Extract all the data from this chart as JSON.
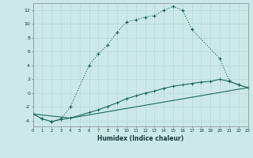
{
  "xlabel": "Humidex (Indice chaleur)",
  "bg_color": "#cce8e8",
  "line_color": "#1a6b5a",
  "xlim": [
    0,
    23
  ],
  "ylim": [
    -4.8,
    13.0
  ],
  "xticks": [
    0,
    1,
    2,
    3,
    4,
    5,
    6,
    7,
    8,
    9,
    10,
    11,
    12,
    13,
    14,
    15,
    16,
    17,
    18,
    19,
    20,
    21,
    22,
    23
  ],
  "yticks": [
    -4,
    -2,
    0,
    2,
    4,
    6,
    8,
    10,
    12
  ],
  "curve1_x": [
    0,
    1,
    2,
    3,
    4,
    6,
    7,
    8,
    9,
    10,
    11,
    12,
    13,
    14,
    15,
    16,
    17,
    20,
    21,
    22,
    23
  ],
  "curve1_y": [
    -3.0,
    -3.7,
    -4.1,
    -3.7,
    -2.0,
    4.0,
    5.7,
    7.0,
    8.8,
    10.3,
    10.6,
    11.0,
    11.2,
    12.0,
    12.5,
    12.0,
    9.2,
    5.0,
    1.8,
    1.2,
    0.8
  ],
  "curve2_x": [
    0,
    1,
    2,
    3,
    4,
    6,
    7,
    8,
    9,
    10,
    11,
    12,
    13,
    14,
    15,
    16,
    17,
    18,
    19,
    20,
    21,
    22,
    23
  ],
  "curve2_y": [
    -3.0,
    -3.7,
    -4.1,
    -3.8,
    -3.6,
    -2.8,
    -2.4,
    -1.9,
    -1.4,
    -0.8,
    -0.4,
    0.0,
    0.3,
    0.7,
    1.0,
    1.2,
    1.4,
    1.6,
    1.7,
    2.0,
    1.7,
    1.2,
    0.8
  ],
  "curve3_x": [
    0,
    4,
    23
  ],
  "curve3_y": [
    -3.0,
    -3.6,
    0.8
  ]
}
